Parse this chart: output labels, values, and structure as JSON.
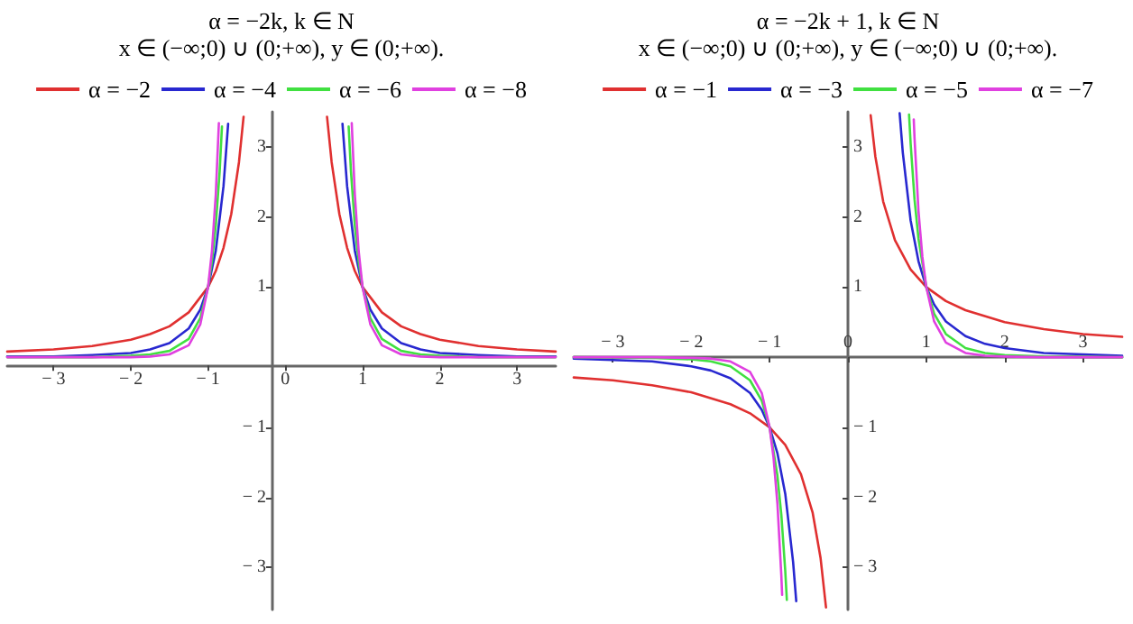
{
  "chart_data": [
    {
      "type": "line",
      "title": "α = −2k, k ∈ N",
      "subtitle": "x ∈ (−∞;0) ∪ (0;+∞), y ∈ (0;+∞).",
      "legend": "top",
      "grid": false,
      "xlim": [
        -3.6,
        3.5
      ],
      "ylim": [
        -3.6,
        3.5
      ],
      "xticks": [
        -3,
        -2,
        -1,
        0,
        1,
        2,
        3
      ],
      "yticks": [
        -3,
        -2,
        -1,
        1,
        2,
        3
      ],
      "series": [
        {
          "name": "α = −2",
          "color": "#e03030",
          "x": [
            -3.6,
            -3,
            -2.5,
            -2,
            -1.75,
            -1.5,
            -1.25,
            -1,
            -0.9,
            -0.8,
            -0.7,
            -0.6,
            -0.54,
            null,
            0.54,
            0.6,
            0.7,
            0.8,
            0.9,
            1,
            1.25,
            1.5,
            1.75,
            2,
            2.5,
            3,
            3.5
          ],
          "values": [
            0.08,
            0.11,
            0.16,
            0.25,
            0.33,
            0.44,
            0.64,
            1,
            1.23,
            1.56,
            2.04,
            2.78,
            3.43,
            null,
            3.43,
            2.78,
            2.04,
            1.56,
            1.23,
            1,
            0.64,
            0.44,
            0.33,
            0.25,
            0.16,
            0.11,
            0.08
          ]
        },
        {
          "name": "α = −4",
          "color": "#2828d0",
          "x": [
            -3.6,
            -3,
            -2.5,
            -2,
            -1.75,
            -1.5,
            -1.25,
            -1.1,
            -1,
            -0.9,
            -0.8,
            -0.74,
            null,
            0.74,
            0.8,
            0.9,
            1,
            1.1,
            1.25,
            1.5,
            1.75,
            2,
            2.5,
            3,
            3.5
          ],
          "values": [
            0.01,
            0.01,
            0.03,
            0.06,
            0.11,
            0.2,
            0.41,
            0.68,
            1,
            1.52,
            2.44,
            3.33,
            null,
            3.33,
            2.44,
            1.52,
            1,
            0.68,
            0.41,
            0.2,
            0.11,
            0.06,
            0.03,
            0.01,
            0.01
          ]
        },
        {
          "name": "α = −6",
          "color": "#40e040",
          "x": [
            -3.6,
            -2.5,
            -2,
            -1.75,
            -1.5,
            -1.25,
            -1.1,
            -1,
            -0.95,
            -0.9,
            -0.85,
            -0.82,
            null,
            0.82,
            0.85,
            0.9,
            0.95,
            1,
            1.1,
            1.25,
            1.5,
            1.75,
            2,
            2.5,
            3.5
          ],
          "values": [
            0,
            0,
            0.02,
            0.04,
            0.09,
            0.26,
            0.56,
            1,
            1.36,
            1.88,
            2.65,
            3.29,
            null,
            3.29,
            2.65,
            1.88,
            1.36,
            1,
            0.56,
            0.26,
            0.09,
            0.04,
            0.02,
            0,
            0
          ]
        },
        {
          "name": "α = −8",
          "color": "#e040e0",
          "x": [
            -3.6,
            -2.5,
            -2,
            -1.75,
            -1.5,
            -1.25,
            -1.1,
            -1,
            -0.95,
            -0.9,
            -0.86,
            null,
            0.86,
            0.9,
            0.95,
            1,
            1.1,
            1.25,
            1.5,
            1.75,
            2,
            2.5,
            3.5
          ],
          "values": [
            0,
            0,
            0,
            0.01,
            0.04,
            0.17,
            0.47,
            1,
            1.51,
            2.32,
            3.34,
            null,
            3.34,
            2.32,
            1.51,
            1,
            0.47,
            0.17,
            0.04,
            0.01,
            0,
            0,
            0
          ]
        }
      ]
    },
    {
      "type": "line",
      "title": "α = −2k + 1, k ∈ N",
      "subtitle": "x ∈ (−∞;0) ∪ (0;+∞), y ∈ (−∞;0) ∪ (0;+∞).",
      "legend": "top",
      "grid": false,
      "xlim": [
        -3.5,
        3.5
      ],
      "ylim": [
        -3.6,
        3.5
      ],
      "xticks": [
        -3,
        -2,
        -1,
        0,
        1,
        2,
        3
      ],
      "yticks": [
        -3,
        -2,
        -1,
        1,
        2,
        3
      ],
      "series": [
        {
          "name": "α = −1",
          "color": "#e03030",
          "x": [
            -3.5,
            -3,
            -2.5,
            -2,
            -1.5,
            -1.25,
            -1,
            -0.8,
            -0.6,
            -0.45,
            -0.35,
            -0.28,
            null,
            0.29,
            0.35,
            0.45,
            0.6,
            0.8,
            1,
            1.25,
            1.5,
            2,
            2.5,
            3,
            3.5
          ],
          "values": [
            -0.29,
            -0.33,
            -0.4,
            -0.5,
            -0.67,
            -0.8,
            -1,
            -1.25,
            -1.67,
            -2.22,
            -2.86,
            -3.57,
            null,
            3.45,
            2.86,
            2.22,
            1.67,
            1.25,
            1,
            0.8,
            0.67,
            0.5,
            0.4,
            0.33,
            0.29
          ]
        },
        {
          "name": "α = −3",
          "color": "#2828d0",
          "x": [
            -3.5,
            -3,
            -2.5,
            -2,
            -1.75,
            -1.5,
            -1.25,
            -1.1,
            -1,
            -0.9,
            -0.8,
            -0.7,
            -0.66,
            null,
            0.66,
            0.7,
            0.8,
            0.9,
            1,
            1.1,
            1.25,
            1.5,
            1.75,
            2,
            2.5,
            3,
            3.5
          ],
          "values": [
            -0.02,
            -0.04,
            -0.06,
            -0.13,
            -0.19,
            -0.3,
            -0.51,
            -0.75,
            -1,
            -1.37,
            -1.95,
            -2.92,
            -3.48,
            null,
            3.48,
            2.92,
            1.95,
            1.37,
            1,
            0.75,
            0.51,
            0.3,
            0.19,
            0.13,
            0.06,
            0.04,
            0.02
          ]
        },
        {
          "name": "α = −5",
          "color": "#40e040",
          "x": [
            -3.5,
            -2.5,
            -2,
            -1.75,
            -1.5,
            -1.25,
            -1.1,
            -1,
            -0.9,
            -0.85,
            -0.8,
            -0.78,
            null,
            0.78,
            0.8,
            0.85,
            0.9,
            1,
            1.1,
            1.25,
            1.5,
            1.75,
            2,
            2.5,
            3.5
          ],
          "values": [
            0,
            -0.01,
            -0.03,
            -0.06,
            -0.13,
            -0.33,
            -0.62,
            -1,
            -1.69,
            -2.25,
            -3.05,
            -3.46,
            null,
            3.46,
            3.05,
            2.25,
            1.69,
            1,
            0.62,
            0.33,
            0.13,
            0.06,
            0.03,
            0.01,
            0
          ]
        },
        {
          "name": "α = −7",
          "color": "#e040e0",
          "x": [
            -3.5,
            -2.5,
            -2,
            -1.75,
            -1.5,
            -1.25,
            -1.1,
            -1,
            -0.95,
            -0.9,
            -0.85,
            -0.84,
            null,
            0.84,
            0.85,
            0.9,
            0.95,
            1,
            1.1,
            1.25,
            1.5,
            1.75,
            2,
            2.5,
            3.5
          ],
          "values": [
            0,
            0,
            -0.01,
            -0.02,
            -0.06,
            -0.21,
            -0.51,
            -1,
            -1.43,
            -2.09,
            -3.12,
            -3.39,
            null,
            3.39,
            3.12,
            2.09,
            1.43,
            1,
            0.51,
            0.21,
            0.06,
            0.02,
            0.01,
            0,
            0
          ]
        }
      ]
    }
  ]
}
